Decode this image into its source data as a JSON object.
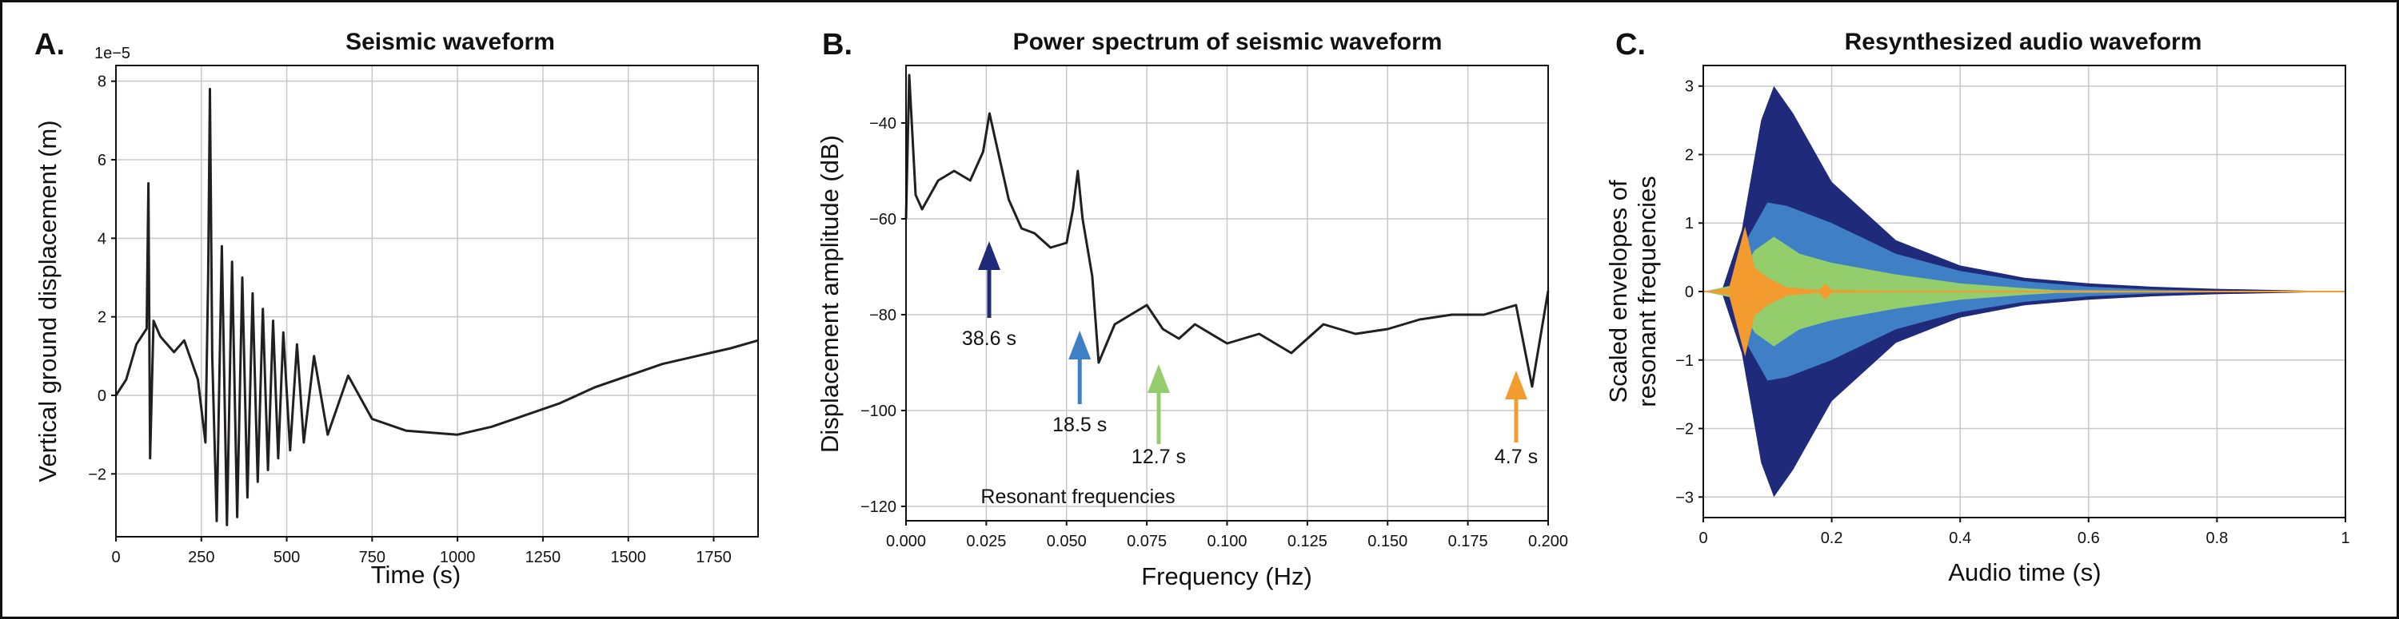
{
  "colors": {
    "trace": "#231f20",
    "navy": "#1f2a7a",
    "blue": "#3f7fc6",
    "green": "#94cd6c",
    "orange": "#f39b2f"
  },
  "chart_data": [
    {
      "panel": "A.",
      "type": "line",
      "title": "Seismic waveform",
      "xlabel": "Time (s)",
      "ylabel": "Vertical ground displacement (m)",
      "y_offset_text": "1e−5",
      "xlim": [
        0,
        1880
      ],
      "ylim": [
        -3.6,
        8.4
      ],
      "xticks": [
        0,
        250,
        500,
        750,
        1000,
        1250,
        1500,
        1750
      ],
      "yticks": [
        -2,
        0,
        2,
        4,
        6,
        8
      ],
      "xtick_labels": [
        "0",
        "250",
        "500",
        "750",
        "1000",
        "1250",
        "1500",
        "1750"
      ],
      "ytick_labels": [
        "−2",
        "0",
        "2",
        "4",
        "6",
        "8"
      ],
      "grid": true,
      "series": [
        {
          "color": "trace",
          "points": [
            [
              0,
              0
            ],
            [
              30,
              0.4
            ],
            [
              60,
              1.3
            ],
            [
              90,
              1.7
            ],
            [
              95,
              5.4
            ],
            [
              100,
              -1.6
            ],
            [
              110,
              1.9
            ],
            [
              130,
              1.5
            ],
            [
              170,
              1.1
            ],
            [
              200,
              1.4
            ],
            [
              240,
              0.4
            ],
            [
              262,
              -1.2
            ],
            [
              270,
              3.0
            ],
            [
              275,
              7.8
            ],
            [
              282,
              1.0
            ],
            [
              295,
              -3.2
            ],
            [
              310,
              3.8
            ],
            [
              325,
              -3.3
            ],
            [
              340,
              3.4
            ],
            [
              355,
              -3.1
            ],
            [
              370,
              3.0
            ],
            [
              385,
              -2.6
            ],
            [
              400,
              2.6
            ],
            [
              415,
              -2.2
            ],
            [
              430,
              2.2
            ],
            [
              445,
              -1.9
            ],
            [
              460,
              1.9
            ],
            [
              475,
              -1.6
            ],
            [
              490,
              1.6
            ],
            [
              510,
              -1.4
            ],
            [
              530,
              1.3
            ],
            [
              550,
              -1.2
            ],
            [
              580,
              1.0
            ],
            [
              620,
              -1.0
            ],
            [
              680,
              0.5
            ],
            [
              750,
              -0.6
            ],
            [
              850,
              -0.9
            ],
            [
              1000,
              -1.0
            ],
            [
              1100,
              -0.8
            ],
            [
              1200,
              -0.5
            ],
            [
              1300,
              -0.2
            ],
            [
              1400,
              0.2
            ],
            [
              1500,
              0.5
            ],
            [
              1600,
              0.8
            ],
            [
              1700,
              1.0
            ],
            [
              1800,
              1.2
            ],
            [
              1880,
              1.4
            ]
          ]
        }
      ]
    },
    {
      "panel": "B.",
      "type": "line",
      "title": "Power spectrum of seismic waveform",
      "xlabel": "Frequency (Hz)",
      "ylabel": "Displacement amplitude (dB)",
      "xlim": [
        0,
        0.2
      ],
      "ylim": [
        -123,
        -28
      ],
      "xticks": [
        0,
        0.025,
        0.05,
        0.075,
        0.1,
        0.125,
        0.15,
        0.175,
        0.2
      ],
      "yticks": [
        -120,
        -100,
        -80,
        -60,
        -40
      ],
      "xtick_labels": [
        "0.000",
        "0.025",
        "0.050",
        "0.075",
        "0.100",
        "0.125",
        "0.150",
        "0.175",
        "0.200"
      ],
      "ytick_labels": [
        "−120",
        "−100",
        "−80",
        "−60",
        "−40"
      ],
      "grid": true,
      "series": [
        {
          "color": "trace",
          "points": [
            [
              0,
              -60
            ],
            [
              0.001,
              -30
            ],
            [
              0.003,
              -55
            ],
            [
              0.005,
              -58
            ],
            [
              0.01,
              -52
            ],
            [
              0.015,
              -50
            ],
            [
              0.02,
              -52
            ],
            [
              0.024,
              -46
            ],
            [
              0.026,
              -38
            ],
            [
              0.028,
              -44
            ],
            [
              0.032,
              -56
            ],
            [
              0.036,
              -62
            ],
            [
              0.04,
              -63
            ],
            [
              0.045,
              -66
            ],
            [
              0.05,
              -65
            ],
            [
              0.052,
              -58
            ],
            [
              0.0535,
              -50
            ],
            [
              0.055,
              -60
            ],
            [
              0.058,
              -72
            ],
            [
              0.06,
              -90
            ],
            [
              0.065,
              -82
            ],
            [
              0.07,
              -80
            ],
            [
              0.075,
              -78
            ],
            [
              0.08,
              -83
            ],
            [
              0.085,
              -85
            ],
            [
              0.09,
              -82
            ],
            [
              0.1,
              -86
            ],
            [
              0.11,
              -84
            ],
            [
              0.12,
              -88
            ],
            [
              0.13,
              -82
            ],
            [
              0.14,
              -84
            ],
            [
              0.15,
              -83
            ],
            [
              0.16,
              -81
            ],
            [
              0.17,
              -80
            ],
            [
              0.18,
              -80
            ],
            [
              0.19,
              -78
            ],
            [
              0.195,
              -95
            ],
            [
              0.2,
              -75
            ]
          ]
        }
      ],
      "annotations": [
        {
          "label": "38.6 s",
          "x": 0.0259,
          "color": "navy"
        },
        {
          "label": "18.5 s",
          "x": 0.0541,
          "color": "blue"
        },
        {
          "label": "12.7 s",
          "x": 0.0787,
          "color": "green"
        },
        {
          "label": "4.7 s",
          "x": 0.2128,
          "color": "orange"
        }
      ],
      "bottom_text": "Resonant frequencies"
    },
    {
      "panel": "C.",
      "type": "area",
      "title": "Resynthesized audio waveform",
      "xlabel": "Audio time (s)",
      "ylabel_lines": [
        "Scaled envelopes of",
        "resonant frequencies"
      ],
      "xlim": [
        0,
        1
      ],
      "ylim": [
        -3.3,
        3.3
      ],
      "xticks": [
        0,
        0.2,
        0.4,
        0.6,
        0.8,
        1
      ],
      "yticks": [
        -3,
        -2,
        -1,
        0,
        1,
        2,
        3
      ],
      "xtick_labels": [
        "0",
        "0.2",
        "0.4",
        "0.6",
        "0.8",
        "1"
      ],
      "ytick_labels": [
        "−3",
        "−2",
        "−1",
        "0",
        "1",
        "2",
        "3"
      ],
      "grid": true,
      "series": [
        {
          "color": "navy",
          "envelope": [
            [
              0,
              0
            ],
            [
              0.03,
              0.05
            ],
            [
              0.06,
              0.9
            ],
            [
              0.09,
              2.5
            ],
            [
              0.11,
              3.0
            ],
            [
              0.14,
              2.6
            ],
            [
              0.2,
              1.6
            ],
            [
              0.3,
              0.75
            ],
            [
              0.4,
              0.38
            ],
            [
              0.5,
              0.2
            ],
            [
              0.6,
              0.12
            ],
            [
              0.7,
              0.07
            ],
            [
              0.8,
              0.04
            ],
            [
              0.9,
              0.02
            ],
            [
              1,
              0
            ]
          ]
        },
        {
          "color": "blue",
          "envelope": [
            [
              0,
              0
            ],
            [
              0.04,
              0.05
            ],
            [
              0.07,
              0.8
            ],
            [
              0.1,
              1.3
            ],
            [
              0.13,
              1.25
            ],
            [
              0.2,
              1.0
            ],
            [
              0.3,
              0.55
            ],
            [
              0.4,
              0.3
            ],
            [
              0.5,
              0.15
            ],
            [
              0.6,
              0.07
            ],
            [
              0.7,
              0.03
            ],
            [
              0.8,
              0.01
            ],
            [
              1,
              0
            ]
          ]
        },
        {
          "color": "green",
          "envelope": [
            [
              0,
              0
            ],
            [
              0.05,
              0.1
            ],
            [
              0.08,
              0.6
            ],
            [
              0.11,
              0.8
            ],
            [
              0.15,
              0.55
            ],
            [
              0.2,
              0.42
            ],
            [
              0.3,
              0.25
            ],
            [
              0.4,
              0.12
            ],
            [
              0.5,
              0.05
            ],
            [
              0.55,
              0.02
            ],
            [
              1,
              0
            ]
          ]
        },
        {
          "color": "orange",
          "envelope": [
            [
              0,
              0
            ],
            [
              0.04,
              0.05
            ],
            [
              0.065,
              0.95
            ],
            [
              0.08,
              0.35
            ],
            [
              0.1,
              0.2
            ],
            [
              0.13,
              0.06
            ],
            [
              0.18,
              0.02
            ],
            [
              0.19,
              0.12
            ],
            [
              0.2,
              0.02
            ],
            [
              0.3,
              0.01
            ],
            [
              0.45,
              0.0
            ],
            [
              1,
              0
            ]
          ]
        }
      ]
    }
  ]
}
